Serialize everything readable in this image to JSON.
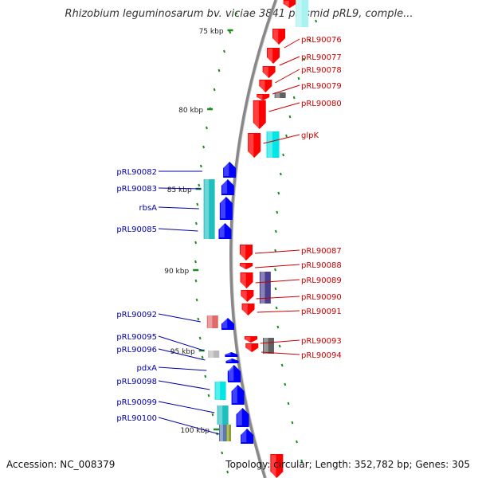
{
  "title": "Rhizobium leguminosarum bv. viciae 3841 plasmid pRL9, comple...",
  "footer": {
    "accession": "Accession: NC_008379",
    "topology": "Topology: circular; Length: 352,782 bp; Genes: 305"
  },
  "colors": {
    "forward_gene": "#ff0000",
    "reverse_gene": "#0000ff",
    "forward_label": "#cc0000",
    "reverse_label": "#0000aa",
    "cyan_feature": "#00e5e5",
    "purple_feature": "#4b3f8f",
    "grey_feature": "#606060",
    "backbone": "#888888",
    "tick": "#1a8a1a"
  },
  "scale_labels": [
    "75 kbp",
    "80 kbp",
    "85 kbp",
    "90 kbp",
    "95 kbp",
    "100 kbp"
  ],
  "forward_genes": [
    "pRL90076",
    "pRL90077",
    "pRL90078",
    "pRL90079",
    "pRL90080",
    "glpK",
    "pRL90087",
    "pRL90088",
    "pRL90089",
    "pRL90090",
    "pRL90091",
    "pRL90093",
    "pRL90094"
  ],
  "reverse_genes": [
    "pRL90082",
    "pRL90083",
    "rbsA",
    "pRL90085",
    "pRL90092",
    "pRL90095",
    "pRL90096",
    "pdxA",
    "pRL90098",
    "pRL90099",
    "pRL90100"
  ]
}
